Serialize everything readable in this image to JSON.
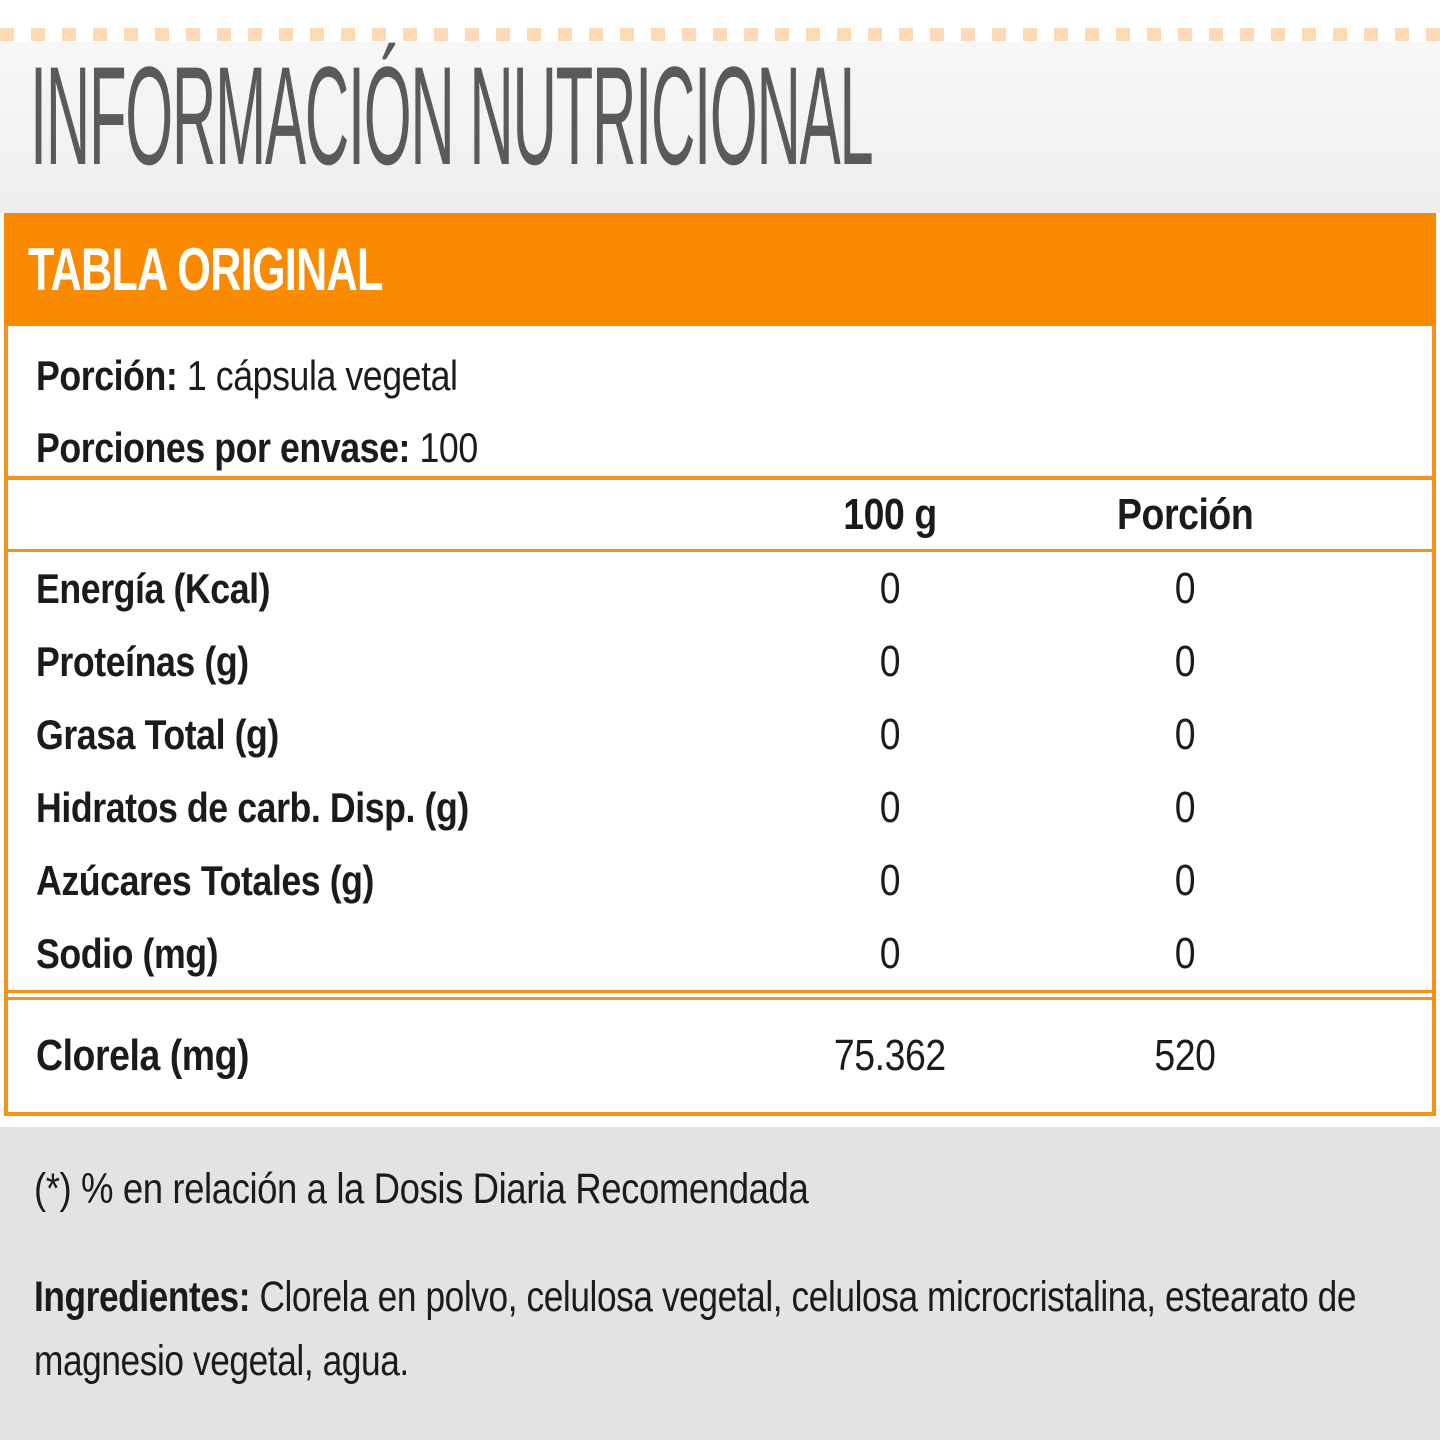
{
  "page": {
    "title": "INFORMACIÓN NUTRICIONAL"
  },
  "table": {
    "header": "TABLA ORIGINAL",
    "serving": {
      "portion_label": "Porción:",
      "portion_value": " 1 cápsula vegetal",
      "servings_label": "Porciones por envase:",
      "servings_value": " 100"
    },
    "columns": {
      "per100": "100 g",
      "portion": "Porción"
    },
    "rows": [
      {
        "label": "Energía (Kcal)",
        "per100": "0",
        "portion": "0"
      },
      {
        "label": "Proteínas (g)",
        "per100": "0",
        "portion": "0"
      },
      {
        "label": "Grasa Total (g)",
        "per100": "0",
        "portion": "0"
      },
      {
        "label": "Hidratos de carb. Disp. (g)",
        "per100": "0",
        "portion": "0"
      },
      {
        "label": "Azúcares Totales (g)",
        "per100": "0",
        "portion": "0"
      },
      {
        "label": "Sodio (mg)",
        "per100": "0",
        "portion": "0"
      }
    ],
    "highlight_row": {
      "label": "Clorela (mg)",
      "per100": "75.362",
      "portion": "520"
    }
  },
  "footer": {
    "note": "(*) % en relación a la Dosis Diaria Recomendada",
    "ingredients_label": "Ingredientes:",
    "ingredients_text": " Clorela en polvo, celulosa vegetal, celulosa microcristalina, estearato de magnesio vegetal, agua."
  },
  "colors": {
    "accent_orange": "#FA8B00",
    "rule_orange": "#F6921E",
    "title_gray_text": "#5A5A5A",
    "band_gray": "#F3F3F3",
    "footer_gray": "#E5E3E1",
    "body_text": "#1B1B1B"
  }
}
